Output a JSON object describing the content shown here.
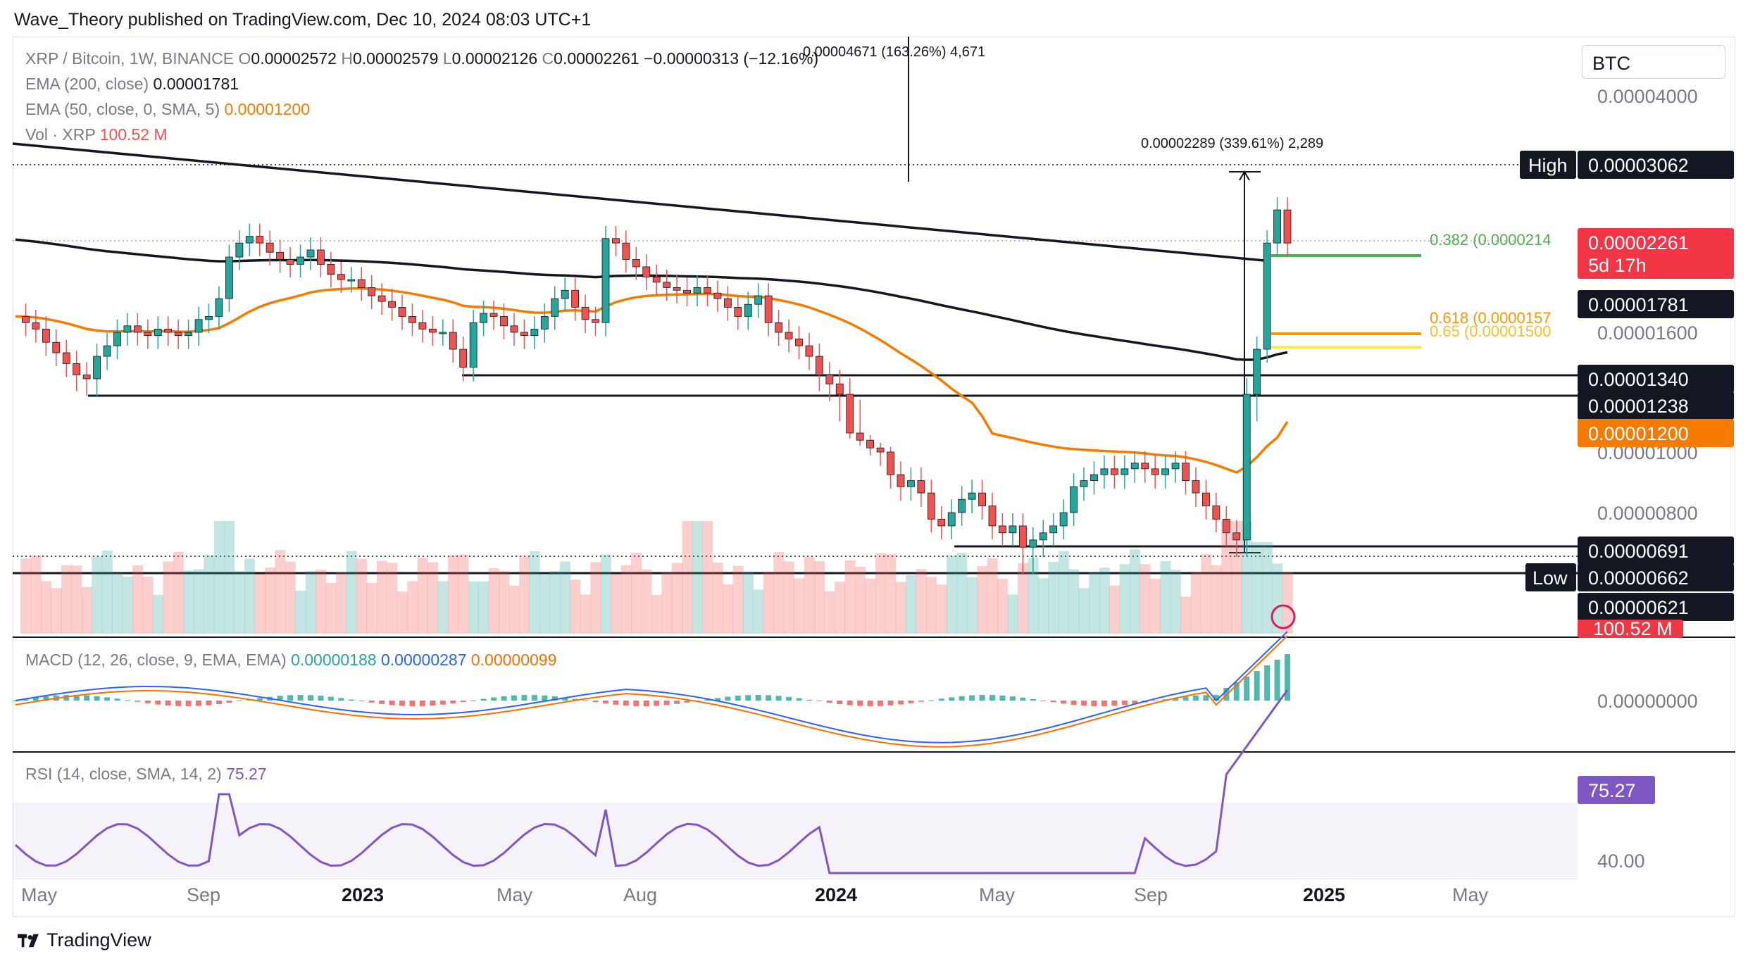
{
  "header": {
    "publisher": "Wave_Theory",
    "text": "Wave_Theory published on TradingView.com, Dec 10, 2024 08:03 UTC+1"
  },
  "legend": {
    "symbol": "XRP / Bitcoin, 1W, BINANCE",
    "ohlc": {
      "O": "0.00002572",
      "H": "0.00002579",
      "L": "0.00002126",
      "C": "0.00002261"
    },
    "change": "−0.00000313 (−12.16%)",
    "ema200_label": "EMA (200, close)",
    "ema200_value": "0.00001781",
    "ema50_label": "EMA (50, close, 0, SMA, 5)",
    "ema50_value": "0.00001200",
    "vol_label": "Vol · XRP",
    "vol_value": "100.52 M"
  },
  "currency_button": "BTC",
  "measures": {
    "top_measure": "0.00004671 (163.26%) 4,671",
    "right_measure": "0.00002289 (339.61%) 2,289"
  },
  "fib": {
    "f382": "0.382 (0.0000214",
    "f618": "0.618 (0.0000157",
    "f65": "0.65 (0.00001500"
  },
  "price_axis": {
    "ticks": [
      "0.00004000",
      "0.00001600",
      "0.00001000",
      "0.00000800",
      "0.00000000",
      "40.00"
    ],
    "high_tag": "High",
    "high_value": "0.00003062",
    "current_value": "0.00002261",
    "countdown": "5d 17h",
    "ema200_tag": "0.00001781",
    "level_1340": "0.00001340",
    "level_1238": "0.00001238",
    "ema50_tag": "0.00001200",
    "level_691": "0.00000691",
    "low_tag": "Low",
    "low_value": "0.00000662",
    "level_621": "0.00000621",
    "vol_tag": "100.52 M",
    "rsi_tag": "75.27"
  },
  "macd": {
    "label": "MACD (12, 26, close, 9, EMA, EMA)",
    "v1": "0.00000188",
    "v2": "0.00000287",
    "v3": "0.00000099"
  },
  "rsi": {
    "label": "RSI (14, close, SMA, 14, 2)",
    "value": "75.27"
  },
  "time_axis": [
    "May",
    "Sep",
    "2023",
    "May",
    "Aug",
    "2024",
    "May",
    "Sep",
    "2025",
    "May"
  ],
  "footer": {
    "brand": "TradingView"
  },
  "colors": {
    "up": "#26a69a",
    "down": "#ef5350",
    "ema200": "#131722",
    "ema50": "#f57c00",
    "macd": "#2962ff",
    "signal": "#ff6d00",
    "rsi": "#7e57c2",
    "fib382": "#4caf50",
    "fib618": "#ff9800",
    "fib65": "#ffeb3b"
  },
  "chart_data": {
    "type": "candlestick",
    "title": "XRP / Bitcoin, 1W, BINANCE",
    "timeframe": "1W",
    "series": [
      {
        "name": "EMA (200, close)",
        "last": 1.781e-05
      },
      {
        "name": "EMA (50, close, 0, SMA, 5)",
        "last": 1.2e-05
      },
      {
        "name": "Vol · XRP",
        "last": "100.52 M"
      }
    ],
    "key_levels": [
      3.062e-05,
      2.261e-05,
      1.781e-05,
      1.34e-05,
      1.238e-05,
      1.2e-05,
      6.91e-06,
      6.62e-06,
      6.21e-06
    ],
    "closes": [
      1.7e-05,
      1.66e-05,
      1.62e-05,
      1.54e-05,
      1.48e-05,
      1.42e-05,
      1.36e-05,
      1.34e-05,
      1.46e-05,
      1.52e-05,
      1.6e-05,
      1.64e-05,
      1.6e-05,
      1.58e-05,
      1.62e-05,
      1.6e-05,
      1.58e-05,
      1.6e-05,
      1.68e-05,
      1.7e-05,
      1.82e-05,
      2.14e-05,
      2.26e-05,
      2.32e-05,
      2.26e-05,
      2.18e-05,
      2.12e-05,
      2.08e-05,
      2.14e-05,
      2.2e-05,
      2.08e-05,
      2e-05,
      1.96e-05,
      1.96e-05,
      1.9e-05,
      1.84e-05,
      1.8e-05,
      1.76e-05,
      1.7e-05,
      1.66e-05,
      1.62e-05,
      1.6e-05,
      1.6e-05,
      1.5e-05,
      1.4e-05,
      1.66e-05,
      1.72e-05,
      1.7e-05,
      1.64e-05,
      1.6e-05,
      1.58e-05,
      1.62e-05,
      1.7e-05,
      1.82e-05,
      1.88e-05,
      1.76e-05,
      1.68e-05,
      1.66e-05,
      2.3e-05,
      2.26e-05,
      2.12e-05,
      2.06e-05,
      1.98e-05,
      1.94e-05,
      1.9e-05,
      1.88e-05,
      1.86e-05,
      1.9e-05,
      1.86e-05,
      1.82e-05,
      1.76e-05,
      1.7e-05,
      1.78e-05,
      1.84e-05,
      1.66e-05,
      1.6e-05,
      1.56e-05,
      1.52e-05,
      1.46e-05,
      1.36e-05,
      1.32e-05,
      1.28e-05,
      1.2e-05,
      1.12e-05,
      1.04e-05,
      1e-05,
      9.2e-06,
      8.8e-06,
      9e-06,
      8.6e-06,
      7.8e-06,
      7.6e-06,
      8e-06,
      8.4e-06,
      8.6e-06,
      8.2e-06,
      7.6e-06,
      7.4e-06,
      7.6e-06,
      7e-06,
      7.2e-06,
      7.4e-06,
      7.6e-06,
      8e-06,
      8.8e-06,
      9e-06,
      9.2e-06,
      9.4e-06,
      9.2e-06,
      9.4e-06,
      9.6e-06,
      9.4e-06,
      9.2e-06,
      9.4e-06,
      9.6e-06,
      9e-06,
      8.6e-06,
      8.2e-06,
      7.8e-06,
      7.4e-06,
      7.2e-06,
      1.28e-05,
      1.5e-05,
      2.26e-05,
      2.57e-05,
      2.26e-05
    ],
    "rsi_last": 75.27,
    "macd_last": [
      1.88e-06,
      2.87e-06,
      9.9e-07
    ],
    "x_ticks": [
      "May",
      "Sep",
      "2023",
      "May",
      "Aug",
      "2024",
      "May",
      "Sep",
      "2025",
      "May"
    ]
  }
}
